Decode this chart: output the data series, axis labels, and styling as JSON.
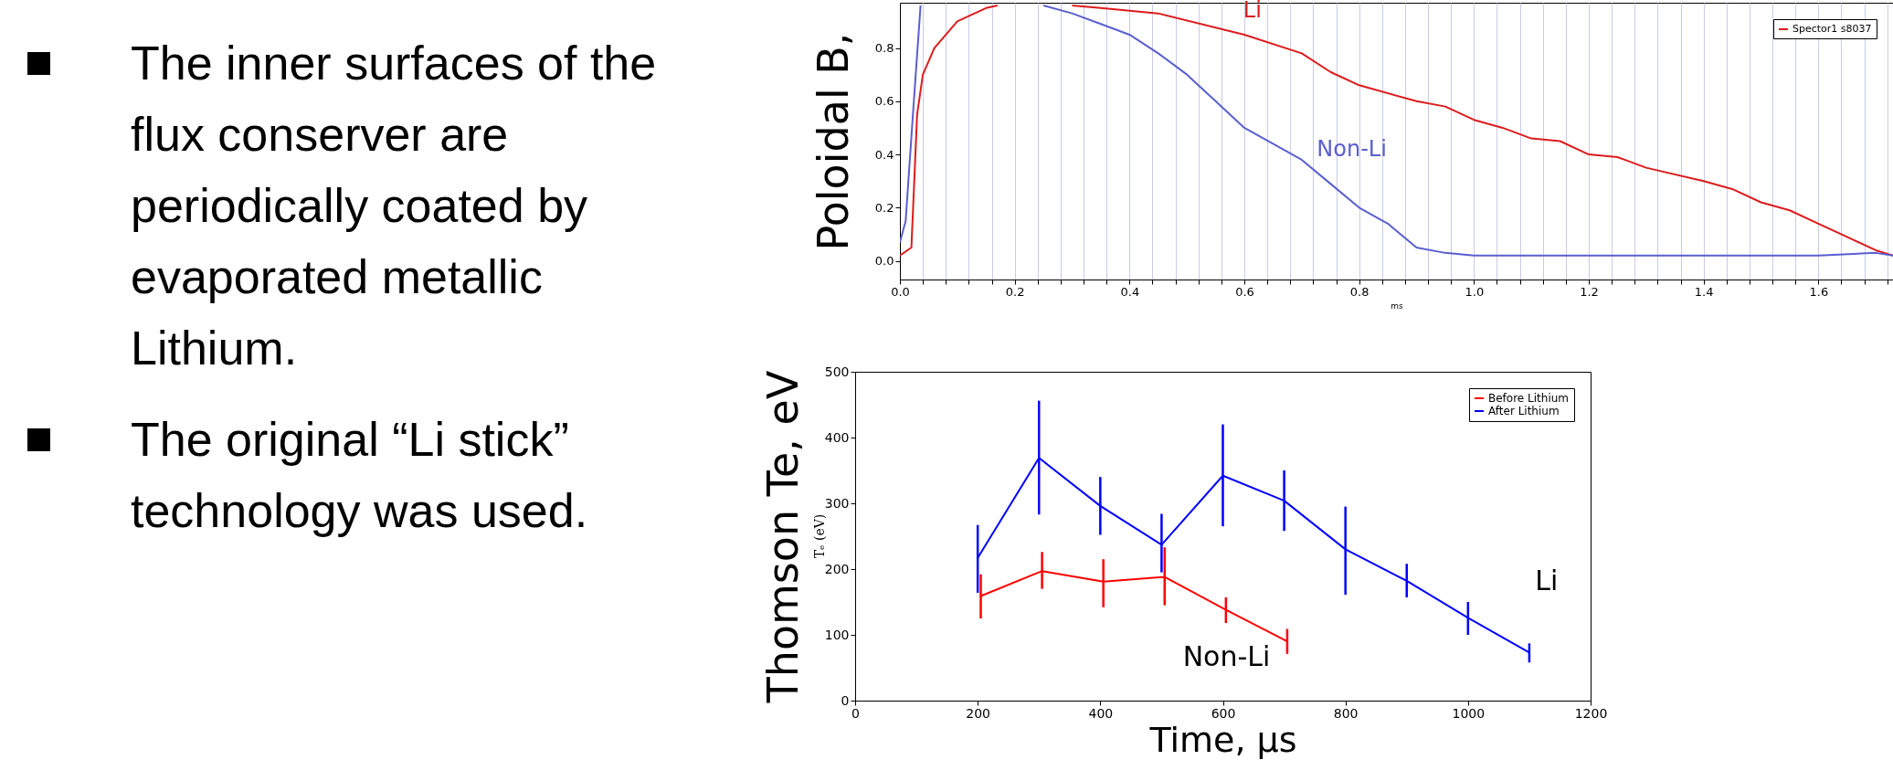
{
  "chart_data": [
    {
      "type": "other",
      "annotations": [
        "The inner surfaces of the flux conserver are periodically coated by evaporated metallic Lithium.",
        "The original “Li stick” technology was used."
      ]
    },
    {
      "type": "line",
      "ylabel": "Poloidal B,",
      "xlabel": "ms",
      "xlim": [
        0,
        1.73
      ],
      "ylim": [
        -0.07,
        0.97
      ],
      "xticks": [
        {
          "value": 0,
          "label": "0.0"
        },
        {
          "value": 0.04,
          "label": null
        },
        {
          "value": 0.08,
          "label": null
        },
        {
          "value": 0.12,
          "label": null
        },
        {
          "value": 0.16,
          "label": null
        },
        {
          "value": 0.2,
          "label": "0.2"
        },
        {
          "value": 0.24,
          "label": null
        },
        {
          "value": 0.28,
          "label": null
        },
        {
          "value": 0.32,
          "label": null
        },
        {
          "value": 0.36,
          "label": null
        },
        {
          "value": 0.4,
          "label": "0.4"
        },
        {
          "value": 0.44,
          "label": null
        },
        {
          "value": 0.48,
          "label": null
        },
        {
          "value": 0.52,
          "label": null
        },
        {
          "value": 0.56,
          "label": null
        },
        {
          "value": 0.6,
          "label": "0.6"
        },
        {
          "value": 0.64,
          "label": null
        },
        {
          "value": 0.68,
          "label": null
        },
        {
          "value": 0.72,
          "label": null
        },
        {
          "value": 0.76,
          "label": null
        },
        {
          "value": 0.8,
          "label": "0.8"
        },
        {
          "value": 0.84,
          "label": null
        },
        {
          "value": 0.88,
          "label": null
        },
        {
          "value": 0.92,
          "label": null
        },
        {
          "value": 0.96,
          "label": null
        },
        {
          "value": 1,
          "label": "1.0"
        },
        {
          "value": 1.04,
          "label": null
        },
        {
          "value": 1.08,
          "label": null
        },
        {
          "value": 1.12,
          "label": null
        },
        {
          "value": 1.16,
          "label": null
        },
        {
          "value": 1.2,
          "label": "1.2"
        },
        {
          "value": 1.24,
          "label": null
        },
        {
          "value": 1.28,
          "label": null
        },
        {
          "value": 1.32,
          "label": null
        },
        {
          "value": 1.36,
          "label": null
        },
        {
          "value": 1.4,
          "label": "1.4"
        },
        {
          "value": 1.44,
          "label": null
        },
        {
          "value": 1.48,
          "label": null
        },
        {
          "value": 1.52,
          "label": null
        },
        {
          "value": 1.56,
          "label": null
        },
        {
          "value": 1.6,
          "label": "1.6"
        },
        {
          "value": 1.64,
          "label": null
        },
        {
          "value": 1.68,
          "label": null
        },
        {
          "value": 1.72,
          "label": null
        }
      ],
      "yticks": [
        {
          "value": 0,
          "label": "0.0"
        },
        {
          "value": 0.2,
          "label": "0.2"
        },
        {
          "value": 0.4,
          "label": "0.4"
        },
        {
          "value": 0.6,
          "label": "0.6"
        },
        {
          "value": 0.8,
          "label": "0.8"
        }
      ],
      "grid": "x",
      "legend": "top right",
      "marker": "none",
      "series": [
        {
          "name": "Spector1 s8037",
          "color": "#dd1c1c",
          "x": [
            0,
            0.02,
            0.025,
            0.03,
            0.04,
            0.06,
            0.1,
            0.15,
            0.17,
            0.24,
            0.3,
            0.35,
            0.45,
            0.6,
            0.7,
            0.75,
            0.8,
            0.9,
            0.95,
            1.0,
            1.05,
            1.1,
            1.15,
            1.2,
            1.25,
            1.3,
            1.4,
            1.45,
            1.5,
            1.55,
            1.6,
            1.65,
            1.7,
            1.73
          ],
          "values": [
            0.02,
            0.05,
            0.3,
            0.55,
            0.7,
            0.8,
            0.9,
            0.95,
            0.96,
            null,
            0.96,
            0.95,
            0.93,
            0.85,
            0.78,
            0.71,
            0.66,
            0.6,
            0.58,
            0.53,
            0.5,
            0.46,
            0.45,
            0.4,
            0.39,
            0.35,
            0.3,
            0.27,
            0.22,
            0.19,
            0.14,
            0.09,
            0.04,
            0.02
          ]
        },
        {
          "color": "#5a5fcf",
          "x": [
            0,
            0.01,
            0.023,
            0.036,
            0.04,
            0.25,
            0.3,
            0.35,
            0.4,
            0.45,
            0.5,
            0.55,
            0.6,
            0.65,
            0.7,
            0.75,
            0.8,
            0.85,
            0.9,
            0.95,
            1.0,
            1.2,
            1.4,
            1.6,
            1.7,
            1.73
          ],
          "values": [
            0.07,
            0.15,
            0.56,
            0.96,
            null,
            0.96,
            0.93,
            0.89,
            0.85,
            0.78,
            0.7,
            0.6,
            0.5,
            0.44,
            0.38,
            0.29,
            0.2,
            0.14,
            0.05,
            0.03,
            0.02,
            0.02,
            0.02,
            0.02,
            0.03,
            0.02
          ]
        }
      ],
      "annotations": [
        "Li",
        "Non-Li"
      ]
    },
    {
      "type": "line",
      "ylabel": "Thomson Te, eV",
      "xlabel": "Time, µs",
      "xlim": [
        0,
        1200
      ],
      "ylim": [
        0,
        500
      ],
      "xticks": [
        0,
        200,
        400,
        600,
        800,
        1000,
        1200
      ],
      "yticks": [
        0,
        100,
        200,
        300,
        400,
        500
      ],
      "legend": "top right",
      "series": [
        {
          "name": "Before Lithium",
          "color": "#ff0000",
          "x": [
            205,
            305,
            405,
            505,
            605,
            705
          ],
          "values": [
            159,
            197,
            181,
            188,
            138,
            90
          ],
          "errors": [
            [
              125,
              192
            ],
            [
              170,
              226
            ],
            [
              142,
              215
            ],
            [
              145,
              233
            ],
            [
              118,
              157
            ],
            [
              71,
              109
            ]
          ]
        },
        {
          "name": "After Lithium",
          "color": "#0000ff",
          "x": [
            200,
            300,
            400,
            500,
            600,
            700,
            800,
            900,
            1000,
            1100
          ],
          "values": [
            217,
            369,
            296,
            237,
            342,
            304,
            230,
            182,
            126,
            73
          ],
          "errors": [
            [
              164,
              267
            ],
            [
              283,
              456
            ],
            [
              252,
              340
            ],
            [
              195,
              284
            ],
            [
              265,
              420
            ],
            [
              258,
              350
            ],
            [
              161,
              295
            ],
            [
              157,
              208
            ],
            [
              100,
              150
            ],
            [
              58,
              87
            ]
          ]
        }
      ],
      "annotations": [
        "Tₑ (eV)",
        "Li",
        "Non-Li"
      ]
    }
  ]
}
